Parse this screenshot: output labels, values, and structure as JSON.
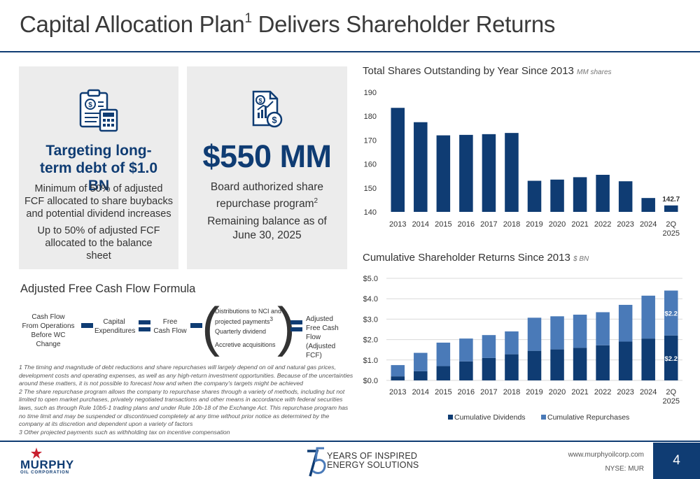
{
  "header": {
    "title_main": "Capital Allocation Plan",
    "title_sup": "1",
    "title_rest": " Delivers Shareholder Returns"
  },
  "card_left": {
    "icon": "clipboard-dollar-calculator-icon",
    "heading": "Targeting long-term debt of $1.0 BN",
    "text1": "Minimum of 50% of adjusted FCF allocated to share buybacks and potential dividend increases",
    "text2": "Up to 50% of adjusted FCF allocated to the balance sheet"
  },
  "card_right": {
    "icon": "document-chart-dollar-icon",
    "big": "$550 MM",
    "text1": "Board authorized share repurchase program",
    "text1_sup": "2",
    "text2": "Remaining balance as of June 30, 2025"
  },
  "formula": {
    "title": "Adjusted Free Cash Flow Formula",
    "term1": "Cash Flow\nFrom Operations\nBefore WC Change",
    "term2": "Capital\nExpenditures",
    "term3": "Free\nCash Flow",
    "paren_item1": "Distributions to NCI and",
    "paren_item1b": "projected payments",
    "paren_item1_sup": "3",
    "paren_item2": "Quarterly dividend",
    "paren_item3": "Accretive acquisitions",
    "result": "Adjusted\nFree Cash Flow\n(Adjusted FCF)"
  },
  "footnotes": {
    "note1": "1 The timing and magnitude of debt reductions and share repurchases will largely depend on oil and natural gas prices, development costs and operating expenses, as well as any high-return investment opportunities. Because of the uncertainties around these matters, it is not possible to forecast how and when the company’s targets might be achieved",
    "note2": "2 The share repurchase program allows the company to repurchase shares through a variety of methods, including but not limited to open market purchases, privately negotiated transactions and other means in accordance with federal securities laws, such as through Rule 10b5-1 trading plans and under Rule 10b-18 of the Exchange Act. This repurchase program has no time limit and may be suspended or discontinued completely at any time without prior notice as determined by the company at its discretion and dependent upon a variety of factors",
    "note3": "3 Other projected payments such as withholding tax on incentive compensation"
  },
  "chart_data": [
    {
      "type": "bar",
      "title": "Total Shares Outstanding by Year Since 2013",
      "unit": "MM shares",
      "categories": [
        "2013",
        "2014",
        "2015",
        "2016",
        "2017",
        "2018",
        "2019",
        "2020",
        "2021",
        "2022",
        "2023",
        "2024",
        "2Q 2025"
      ],
      "values": [
        183.5,
        177.5,
        172.0,
        172.2,
        172.5,
        173.0,
        153.0,
        153.5,
        154.5,
        155.5,
        152.8,
        145.8,
        142.7
      ],
      "data_labels": {
        "12": "142.7"
      },
      "ylim": [
        140,
        190
      ],
      "yticks": [
        140,
        150,
        160,
        170,
        180,
        190
      ],
      "color": "#0f3c73",
      "grid": false
    },
    {
      "type": "bar",
      "stacked": true,
      "title": "Cumulative Shareholder Returns Since 2013",
      "unit": "$ BN",
      "categories": [
        "2013",
        "2014",
        "2015",
        "2016",
        "2017",
        "2018",
        "2019",
        "2020",
        "2021",
        "2022",
        "2023",
        "2024",
        "2Q 2025"
      ],
      "series": [
        {
          "name": "Cumulative Dividends",
          "color": "#0f3c73",
          "values": [
            0.2,
            0.45,
            0.7,
            0.93,
            1.1,
            1.28,
            1.45,
            1.52,
            1.6,
            1.72,
            1.9,
            2.05,
            2.2
          ]
        },
        {
          "name": "Cumulative Repurchases",
          "color": "#4a7ab8",
          "values": [
            0.55,
            0.9,
            1.15,
            1.12,
            1.12,
            1.12,
            1.62,
            1.62,
            1.62,
            1.62,
            1.8,
            2.1,
            2.2
          ]
        }
      ],
      "data_labels": {
        "12": [
          "$2.2",
          "$2.2"
        ]
      },
      "ylim": [
        0,
        5
      ],
      "yticks": [
        "$0.0",
        "$1.0",
        "$2.0",
        "$3.0",
        "$4.0",
        "$5.0"
      ],
      "grid": true,
      "legend": "bottom"
    }
  ],
  "footer": {
    "logo_name": "MURPHY",
    "logo_sub": "OIL CORPORATION",
    "anniversary_number": "75",
    "anniversary_line1": "YEARS OF INSPIRED",
    "anniversary_line2": "ENERGY SOLUTIONS",
    "website": "www.murphyoilcorp.com",
    "ticker": "NYSE: MUR",
    "page_number": "4",
    "brand_color": "#0f3c73",
    "accent_red": "#c8202f"
  }
}
